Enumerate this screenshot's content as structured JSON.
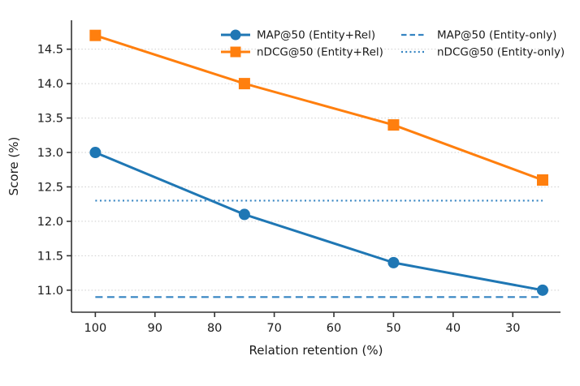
{
  "chart_data": {
    "type": "line",
    "title": "",
    "xlabel": "Relation retention (%)",
    "ylabel": "Score (%)",
    "x": [
      100,
      75,
      50,
      25
    ],
    "series": [
      {
        "name": "MAP@50 (Entity+Rel)",
        "values": [
          13.0,
          12.1,
          11.4,
          11.0
        ],
        "color": "#1f77b4",
        "marker": "circle",
        "style": "solid"
      },
      {
        "name": "nDCG@50 (Entity+Rel)",
        "values": [
          14.7,
          14.0,
          13.4,
          12.6
        ],
        "color": "#ff7f0e",
        "marker": "square",
        "style": "solid"
      },
      {
        "name": "MAP@50 (Entity-only)",
        "horizontal": true,
        "value": 10.9,
        "color": "#3584c2",
        "marker": "none",
        "style": "dashed"
      },
      {
        "name": "nDCG@50 (Entity-only)",
        "horizontal": true,
        "value": 12.3,
        "color": "#3584c2",
        "marker": "none",
        "style": "dotted"
      }
    ],
    "x_ticks": [
      100,
      90,
      80,
      70,
      60,
      50,
      40,
      30
    ],
    "y_ticks": [
      11.0,
      11.5,
      12.0,
      12.5,
      13.0,
      13.5,
      14.0,
      14.5
    ],
    "x_axis_inverted": true,
    "xlim": [
      104,
      22
    ],
    "ylim": [
      10.68,
      14.92
    ],
    "grid": "horizontal dotted light-gray",
    "legend_position": "upper center, 2 columns, no frame",
    "colors": {
      "blue_series": "#1f77b4",
      "orange_series": "#ff7f0e",
      "baseline_blue": "#3584c2",
      "gridline": "#cdcdcd",
      "spine": "#333333",
      "background": "#ffffff"
    }
  }
}
